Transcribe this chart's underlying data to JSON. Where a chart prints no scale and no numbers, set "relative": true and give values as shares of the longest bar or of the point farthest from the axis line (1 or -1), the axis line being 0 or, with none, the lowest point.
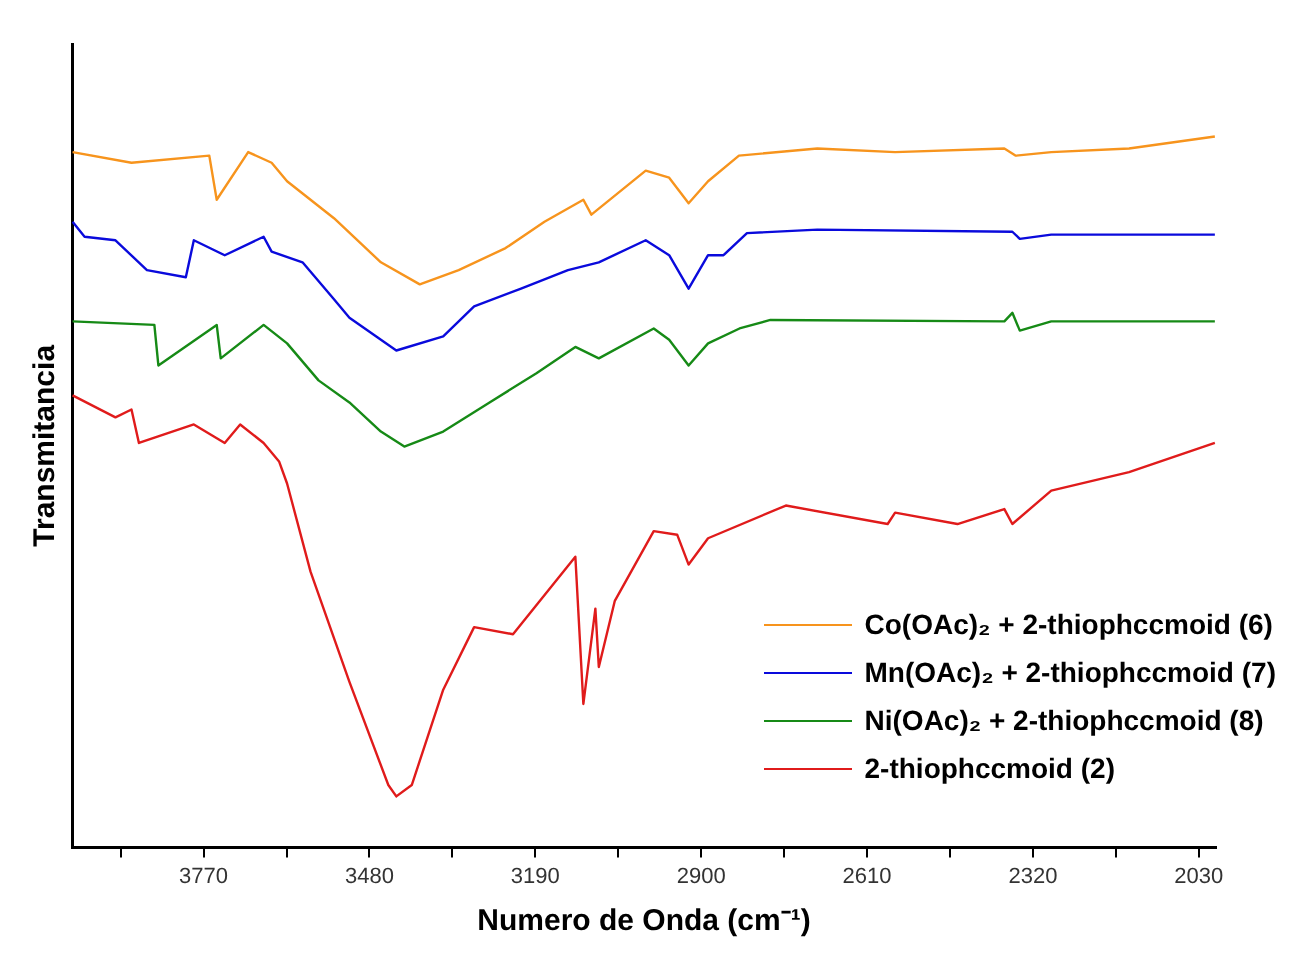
{
  "chart_data": {
    "type": "line",
    "xlabel": "Numero de Onda (cm⁻¹)",
    "ylabel": "Transmitancia",
    "relative": true,
    "xlim": [
      4000,
      2000
    ],
    "xticks": [
      {
        "value": 3915,
        "label": null
      },
      3770,
      {
        "value": 3625,
        "label": null
      },
      3480,
      {
        "value": 3335,
        "label": null
      },
      3190,
      {
        "value": 3045,
        "label": null
      },
      2900,
      {
        "value": 2755,
        "label": null
      },
      2610,
      {
        "value": 2465,
        "label": null
      },
      2320,
      {
        "value": 2175,
        "label": null
      },
      2030
    ],
    "grid": false,
    "legend": "bottom right",
    "marker": "none",
    "line_style": "solid",
    "series": [
      {
        "name": "Co(OAc)₂ + 2-thiophccmoid (6)",
        "color": "#f7941d",
        "x": [
          3999,
          3896,
          3760,
          3747,
          3692,
          3651,
          3624,
          3542,
          3460,
          3392,
          3324,
          3242,
          3174,
          3106,
          3092,
          2997,
          2956,
          2922,
          2888,
          2834,
          2697,
          2561,
          2370,
          2350,
          2288,
          2152,
          2002
        ],
        "values": [
          0.978,
          0.963,
          0.973,
          0.911,
          0.978,
          0.963,
          0.937,
          0.885,
          0.823,
          0.792,
          0.812,
          0.843,
          0.88,
          0.911,
          0.89,
          0.952,
          0.942,
          0.906,
          0.937,
          0.973,
          0.983,
          0.978,
          0.983,
          0.973,
          0.978,
          0.983,
          1
        ]
      },
      {
        "name": "Mn(OAc)₂ + 2-thiophccmoid (7)",
        "color": "#0a0adc",
        "x": [
          3999,
          3978,
          3924,
          3869,
          3801,
          3787,
          3733,
          3665,
          3651,
          3597,
          3542,
          3515,
          3433,
          3351,
          3297,
          3215,
          3133,
          3079,
          2997,
          2956,
          2922,
          2888,
          2861,
          2820,
          2697,
          2356,
          2343,
          2288,
          2002
        ],
        "values": [
          0.88,
          0.859,
          0.854,
          0.812,
          0.802,
          0.854,
          0.833,
          0.859,
          0.838,
          0.823,
          0.771,
          0.745,
          0.699,
          0.719,
          0.761,
          0.786,
          0.812,
          0.823,
          0.854,
          0.833,
          0.786,
          0.833,
          0.833,
          0.864,
          0.869,
          0.866,
          0.856,
          0.862,
          0.862
        ]
      },
      {
        "name": "Ni(OAc)₂ + 2-thiophccmoid (8)",
        "color": "#168a16",
        "x": [
          3999,
          3856,
          3849,
          3747,
          3740,
          3665,
          3624,
          3569,
          3515,
          3460,
          3419,
          3351,
          3270,
          3188,
          3120,
          3079,
          2983,
          2956,
          2922,
          2888,
          2833,
          2779,
          2370,
          2356,
          2343,
          2288,
          2002
        ],
        "values": [
          0.74,
          0.735,
          0.678,
          0.735,
          0.688,
          0.735,
          0.709,
          0.657,
          0.626,
          0.585,
          0.564,
          0.585,
          0.626,
          0.667,
          0.704,
          0.688,
          0.73,
          0.714,
          0.678,
          0.709,
          0.73,
          0.742,
          0.74,
          0.752,
          0.727,
          0.74,
          0.74
        ]
      },
      {
        "name": "2-thiophccmoid (2)",
        "color": "#e01b1b",
        "x": [
          3999,
          3924,
          3896,
          3883,
          3787,
          3733,
          3706,
          3665,
          3638,
          3624,
          3583,
          3515,
          3447,
          3433,
          3406,
          3351,
          3297,
          3229,
          3120,
          3106,
          3085,
          3079,
          3051,
          2983,
          2942,
          2922,
          2888,
          2752,
          2574,
          2561,
          2452,
          2370,
          2356,
          2288,
          2152,
          2002
        ],
        "values": [
          0.636,
          0.605,
          0.616,
          0.569,
          0.595,
          0.569,
          0.595,
          0.569,
          0.543,
          0.512,
          0.388,
          0.233,
          0.088,
          0.072,
          0.088,
          0.222,
          0.31,
          0.3,
          0.409,
          0.202,
          0.336,
          0.254,
          0.347,
          0.445,
          0.44,
          0.398,
          0.435,
          0.481,
          0.455,
          0.471,
          0.455,
          0.476,
          0.455,
          0.502,
          0.528,
          0.569
        ]
      }
    ]
  }
}
